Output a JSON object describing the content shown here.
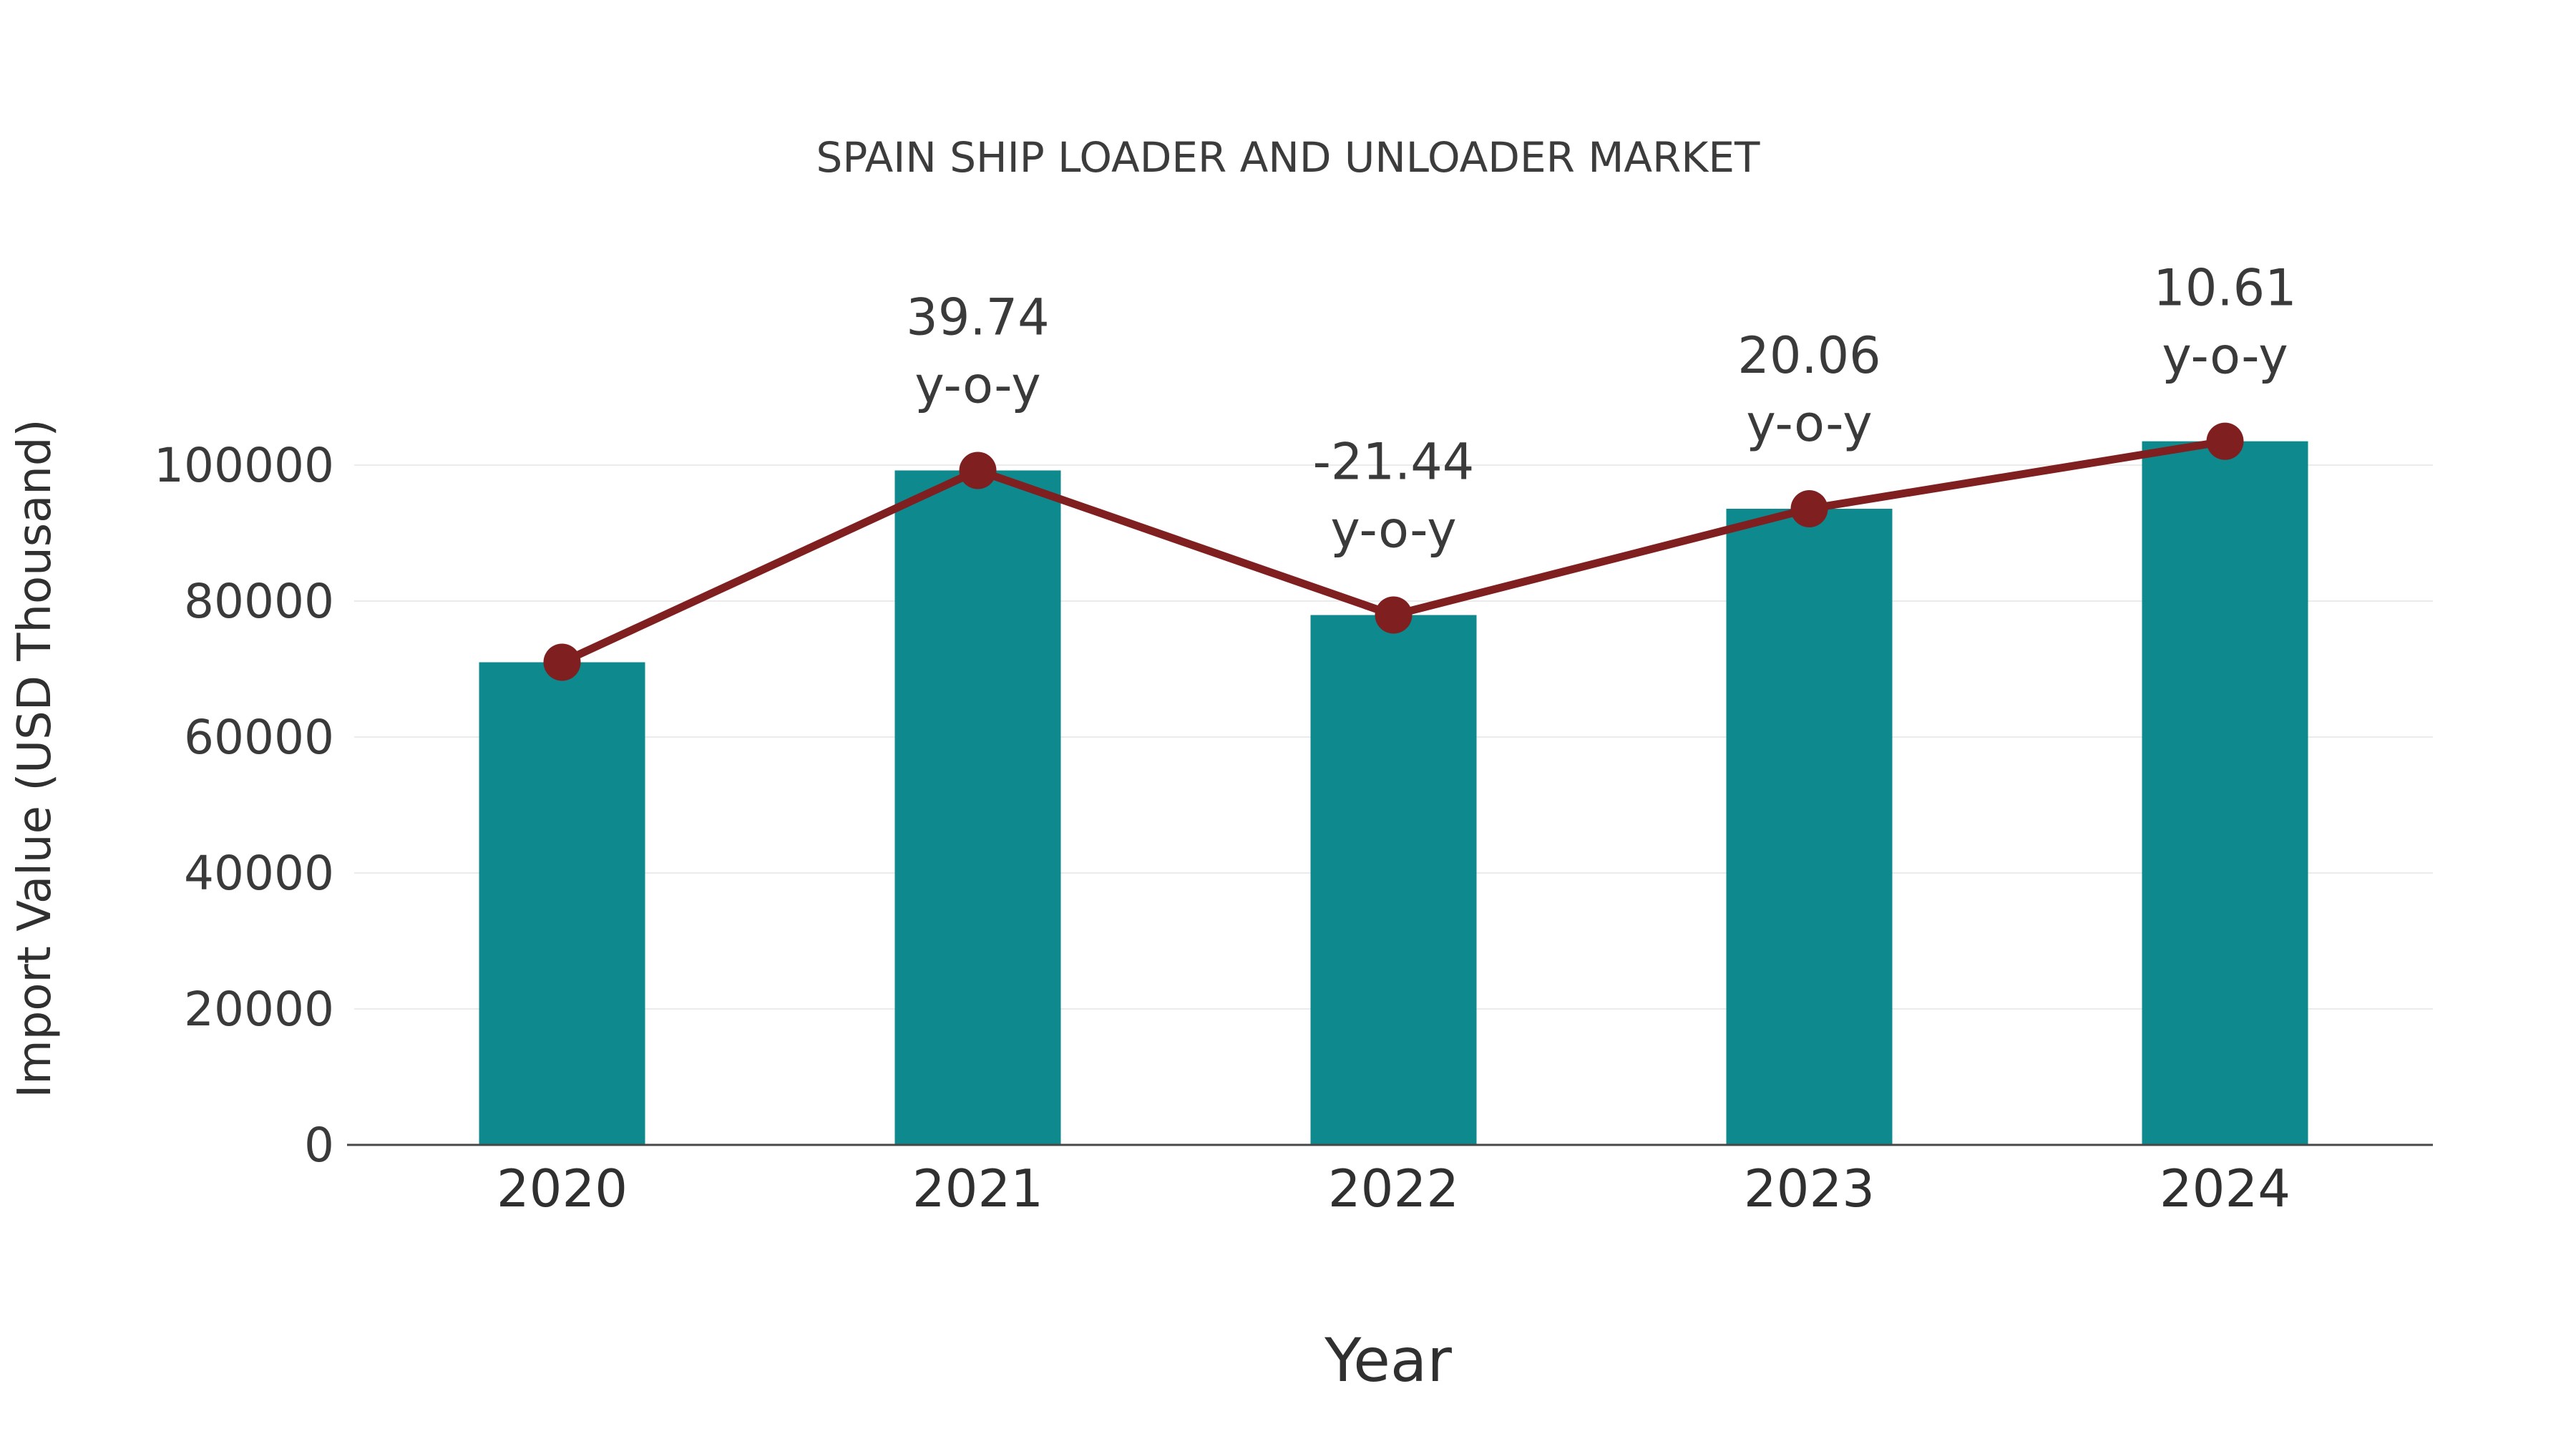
{
  "chart_data": {
    "type": "bar",
    "title": "SPAIN SHIP LOADER AND UNLOADER MARKET",
    "xlabel": "Year",
    "ylabel": "Import Value (USD Thousand)",
    "categories": [
      "2020",
      "2021",
      "2022",
      "2023",
      "2024"
    ],
    "series": [
      {
        "name": "Import Value bars",
        "type": "bar",
        "values": [
          71000,
          99216,
          77943,
          93578,
          103507
        ],
        "color": "#0e898e"
      },
      {
        "name": "Import Value trend line",
        "type": "line",
        "values": [
          71000,
          99216,
          77943,
          93578,
          103507
        ],
        "color": "#7f1f1f"
      }
    ],
    "annotations": {
      "suffix": "y-o-y",
      "values": [
        "",
        "39.74",
        "-21.44",
        "20.06",
        "10.61"
      ]
    },
    "ylim": [
      0,
      100000
    ],
    "yticks": [
      0,
      20000,
      40000,
      60000,
      80000,
      100000
    ],
    "grid": "horizontal-light",
    "legend": "none"
  }
}
